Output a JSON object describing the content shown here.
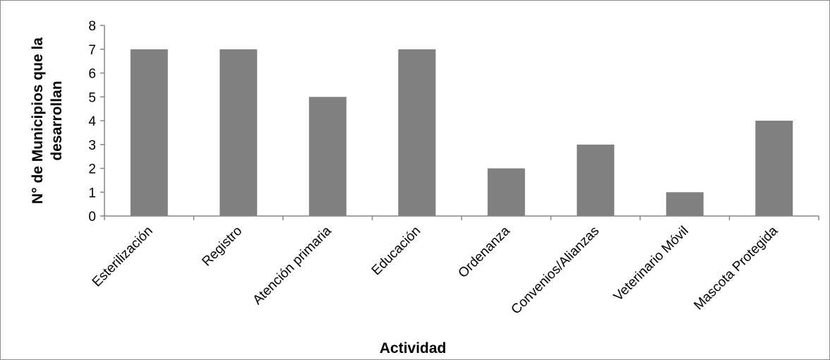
{
  "chart_data": {
    "type": "bar",
    "title": "",
    "xlabel": "Actividad",
    "ylabel_lines": [
      "N° de Municipios que la",
      "desarrollan"
    ],
    "categories": [
      "Esterilización",
      "Registro",
      "Atención primaria",
      "Educación",
      "Ordenanza",
      "Convenios/Alianzas",
      "Veterinario Móvil",
      "Mascota Protegida"
    ],
    "values": [
      7,
      7,
      5,
      7,
      2,
      3,
      1,
      4
    ],
    "ylim": [
      0,
      8
    ],
    "yticks": [
      0,
      1,
      2,
      3,
      4,
      5,
      6,
      7,
      8
    ],
    "bar_color": "#808080",
    "grid": false,
    "legend": "none"
  }
}
